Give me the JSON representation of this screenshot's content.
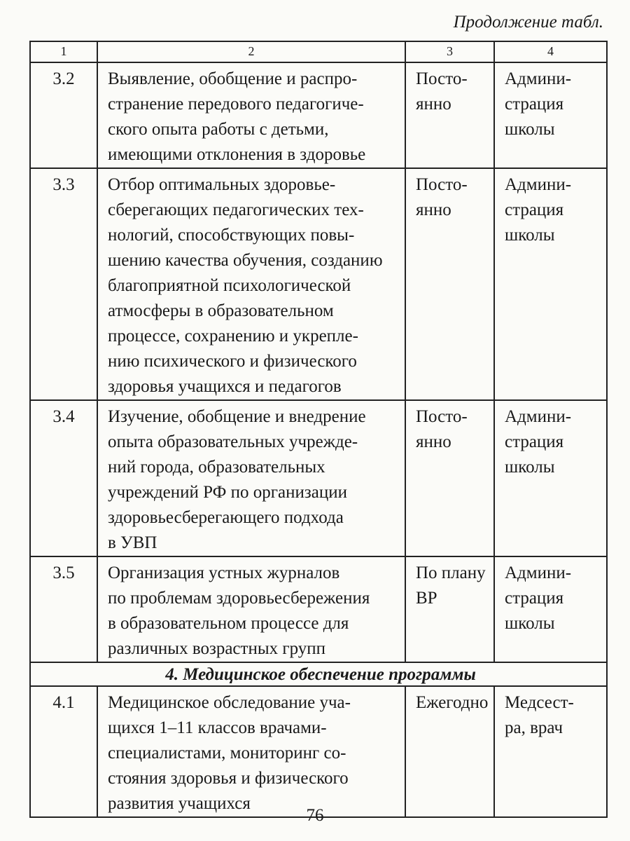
{
  "caption": "Продолжение табл.",
  "header": [
    "1",
    "2",
    "3",
    "4"
  ],
  "rows_a": [
    {
      "num": "3.2",
      "text": "Выявление, обобщение и распро-\nстранение передового педагогиче-\nского опыта работы с детьми,\nимеющими отклонения в здоровье",
      "term": "Посто-\nянно",
      "resp": "Админи-\nстрация\nшколы"
    },
    {
      "num": "3.3",
      "text": "Отбор оптимальных здоровье-\nсберегающих педагогических тех-\nнологий, способствующих повы-\nшению качества обучения, созданию\nблагоприятной психологической\nатмосферы в образовательном\nпроцессе, сохранению и укрепле-\nнию психического и физического\nздоровья учащихся и педагогов",
      "term": "Посто-\nянно",
      "resp": "Админи-\nстрация\nшколы"
    },
    {
      "num": "3.4",
      "text": "Изучение, обобщение и внедрение\nопыта образовательных учрежде-\nний города, образовательных\nучреждений РФ по организации\nздоровьесберегающего подхода\nв УВП",
      "term": "Посто-\nянно",
      "resp": "Админи-\nстрация\nшколы"
    },
    {
      "num": "3.5",
      "text": "Организация устных журналов\nпо проблемам здоровьесбережения\nв образовательном процессе для\nразличных возрастных групп",
      "term": "По плану\nВР",
      "resp": "Админи-\nстрация\nшколы"
    }
  ],
  "section": "4. Медицинское обеспечение программы",
  "rows_b": [
    {
      "num": "4.1",
      "text": "Медицинское обследование уча-\nщихся 1–11 классов врачами-\nспециалистами, мониторинг со-\nстояния здоровья и физического\nразвития учащихся",
      "term": "Ежегодно",
      "resp": "Медсест-\nра, врач"
    }
  ],
  "page_number": "76"
}
